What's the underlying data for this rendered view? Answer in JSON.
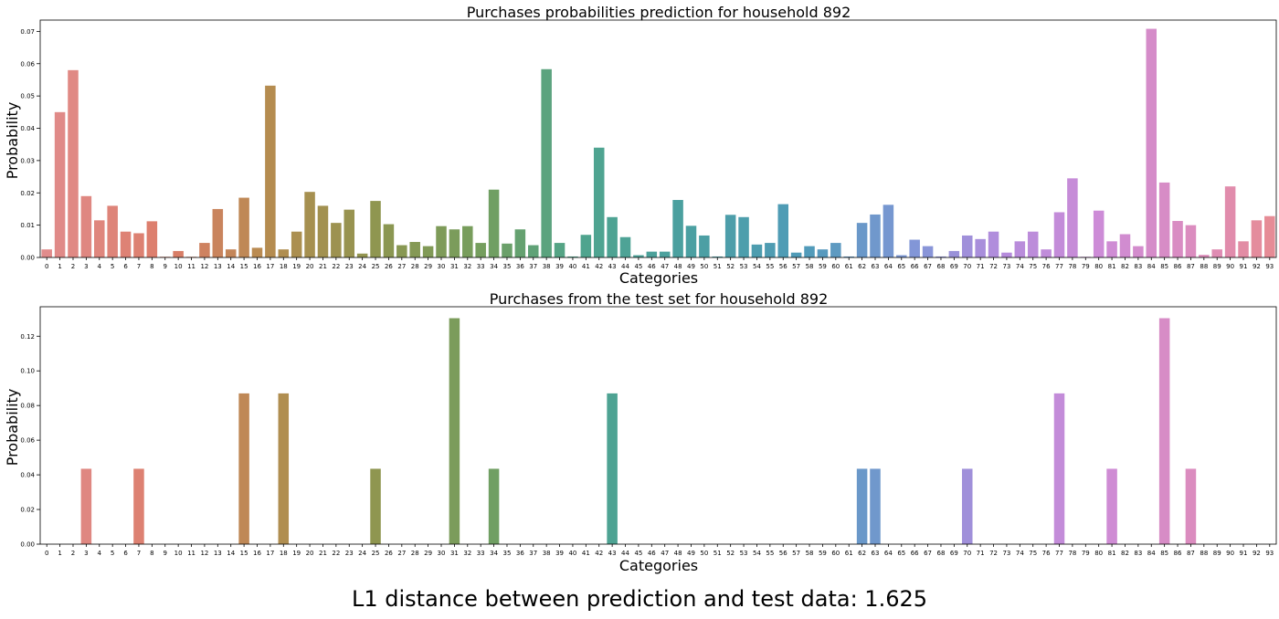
{
  "chart_data": [
    {
      "type": "bar",
      "title": "Purchases probabilities prediction for household 892",
      "xlabel": "Categories",
      "ylabel": "Probability",
      "ylim": [
        0,
        0.0735
      ],
      "yticks": [
        0.0,
        0.01,
        0.02,
        0.03,
        0.04,
        0.05,
        0.06,
        0.07
      ],
      "ytick_labels": [
        "0.00",
        "0.01",
        "0.02",
        "0.03",
        "0.04",
        "0.05",
        "0.06",
        "0.07"
      ],
      "categories": [
        "0",
        "1",
        "2",
        "3",
        "4",
        "5",
        "6",
        "7",
        "8",
        "9",
        "10",
        "11",
        "12",
        "13",
        "14",
        "15",
        "16",
        "17",
        "18",
        "19",
        "20",
        "21",
        "22",
        "23",
        "24",
        "25",
        "26",
        "27",
        "28",
        "29",
        "30",
        "31",
        "32",
        "33",
        "34",
        "35",
        "36",
        "37",
        "38",
        "39",
        "40",
        "41",
        "42",
        "43",
        "44",
        "45",
        "46",
        "47",
        "48",
        "49",
        "50",
        "51",
        "52",
        "53",
        "54",
        "55",
        "56",
        "57",
        "58",
        "59",
        "60",
        "61",
        "62",
        "63",
        "64",
        "65",
        "66",
        "67",
        "68",
        "69",
        "70",
        "71",
        "72",
        "73",
        "74",
        "75",
        "76",
        "77",
        "78",
        "79",
        "80",
        "81",
        "82",
        "83",
        "84",
        "85",
        "86",
        "87",
        "88",
        "89",
        "90",
        "91",
        "92",
        "93"
      ],
      "values": [
        0.0025,
        0.045,
        0.058,
        0.019,
        0.0115,
        0.016,
        0.008,
        0.0075,
        0.0112,
        0.0002,
        0.002,
        0.0002,
        0.0045,
        0.015,
        0.0025,
        0.0185,
        0.003,
        0.0532,
        0.0025,
        0.008,
        0.0203,
        0.016,
        0.0107,
        0.0148,
        0.0012,
        0.0175,
        0.0103,
        0.0038,
        0.0048,
        0.0035,
        0.0097,
        0.0087,
        0.0097,
        0.0045,
        0.021,
        0.0043,
        0.0087,
        0.0038,
        0.0583,
        0.0045,
        0.0003,
        0.007,
        0.034,
        0.0125,
        0.0063,
        0.0007,
        0.0018,
        0.0018,
        0.0178,
        0.0098,
        0.0068,
        0.0003,
        0.0132,
        0.0125,
        0.004,
        0.0045,
        0.0165,
        0.0015,
        0.0035,
        0.0025,
        0.0045,
        0.0003,
        0.0107,
        0.0133,
        0.0163,
        0.0007,
        0.0055,
        0.0035,
        0.0003,
        0.002,
        0.0068,
        0.0057,
        0.008,
        0.0015,
        0.005,
        0.008,
        0.0025,
        0.014,
        0.0245,
        0.0002,
        0.0145,
        0.005,
        0.0072,
        0.0035,
        0.0708,
        0.0232,
        0.0113,
        0.01,
        0.0008,
        0.0025,
        0.022,
        0.005,
        0.0115,
        0.0128
      ]
    },
    {
      "type": "bar",
      "title": "Purchases from the test set for household 892",
      "xlabel": "Categories",
      "ylabel": "Probability",
      "ylim": [
        0,
        0.137
      ],
      "yticks": [
        0.0,
        0.02,
        0.04,
        0.06,
        0.08,
        0.1,
        0.12
      ],
      "ytick_labels": [
        "0.00",
        "0.02",
        "0.04",
        "0.06",
        "0.08",
        "0.10",
        "0.12"
      ],
      "categories": [
        "0",
        "1",
        "2",
        "3",
        "4",
        "5",
        "6",
        "7",
        "8",
        "9",
        "10",
        "11",
        "12",
        "13",
        "14",
        "15",
        "16",
        "17",
        "18",
        "19",
        "20",
        "21",
        "22",
        "23",
        "24",
        "25",
        "26",
        "27",
        "28",
        "29",
        "30",
        "31",
        "32",
        "33",
        "34",
        "35",
        "36",
        "37",
        "38",
        "39",
        "40",
        "41",
        "42",
        "43",
        "44",
        "45",
        "46",
        "47",
        "48",
        "49",
        "50",
        "51",
        "52",
        "53",
        "54",
        "55",
        "56",
        "57",
        "58",
        "59",
        "60",
        "61",
        "62",
        "63",
        "64",
        "65",
        "66",
        "67",
        "68",
        "69",
        "70",
        "71",
        "72",
        "73",
        "74",
        "75",
        "76",
        "77",
        "78",
        "79",
        "80",
        "81",
        "82",
        "83",
        "84",
        "85",
        "86",
        "87",
        "88",
        "89",
        "90",
        "91",
        "92",
        "93"
      ],
      "values": [
        0,
        0,
        0,
        0.0435,
        0,
        0,
        0,
        0.0435,
        0,
        0,
        0,
        0,
        0,
        0,
        0,
        0.087,
        0,
        0,
        0.087,
        0,
        0,
        0,
        0,
        0,
        0,
        0.0435,
        0,
        0,
        0,
        0,
        0,
        0.1304,
        0,
        0,
        0.0435,
        0,
        0,
        0,
        0,
        0,
        0,
        0,
        0,
        0.087,
        0,
        0,
        0,
        0,
        0,
        0,
        0,
        0,
        0,
        0,
        0,
        0,
        0,
        0,
        0,
        0,
        0,
        0,
        0.0435,
        0.0435,
        0,
        0,
        0,
        0,
        0,
        0,
        0.0435,
        0,
        0,
        0,
        0,
        0,
        0,
        0.087,
        0,
        0,
        0,
        0.0435,
        0,
        0,
        0,
        0.1304,
        0,
        0.0435,
        0,
        0,
        0,
        0,
        0,
        0
      ]
    }
  ],
  "footer": {
    "text": "L1 distance between prediction and test data: 1.625"
  }
}
